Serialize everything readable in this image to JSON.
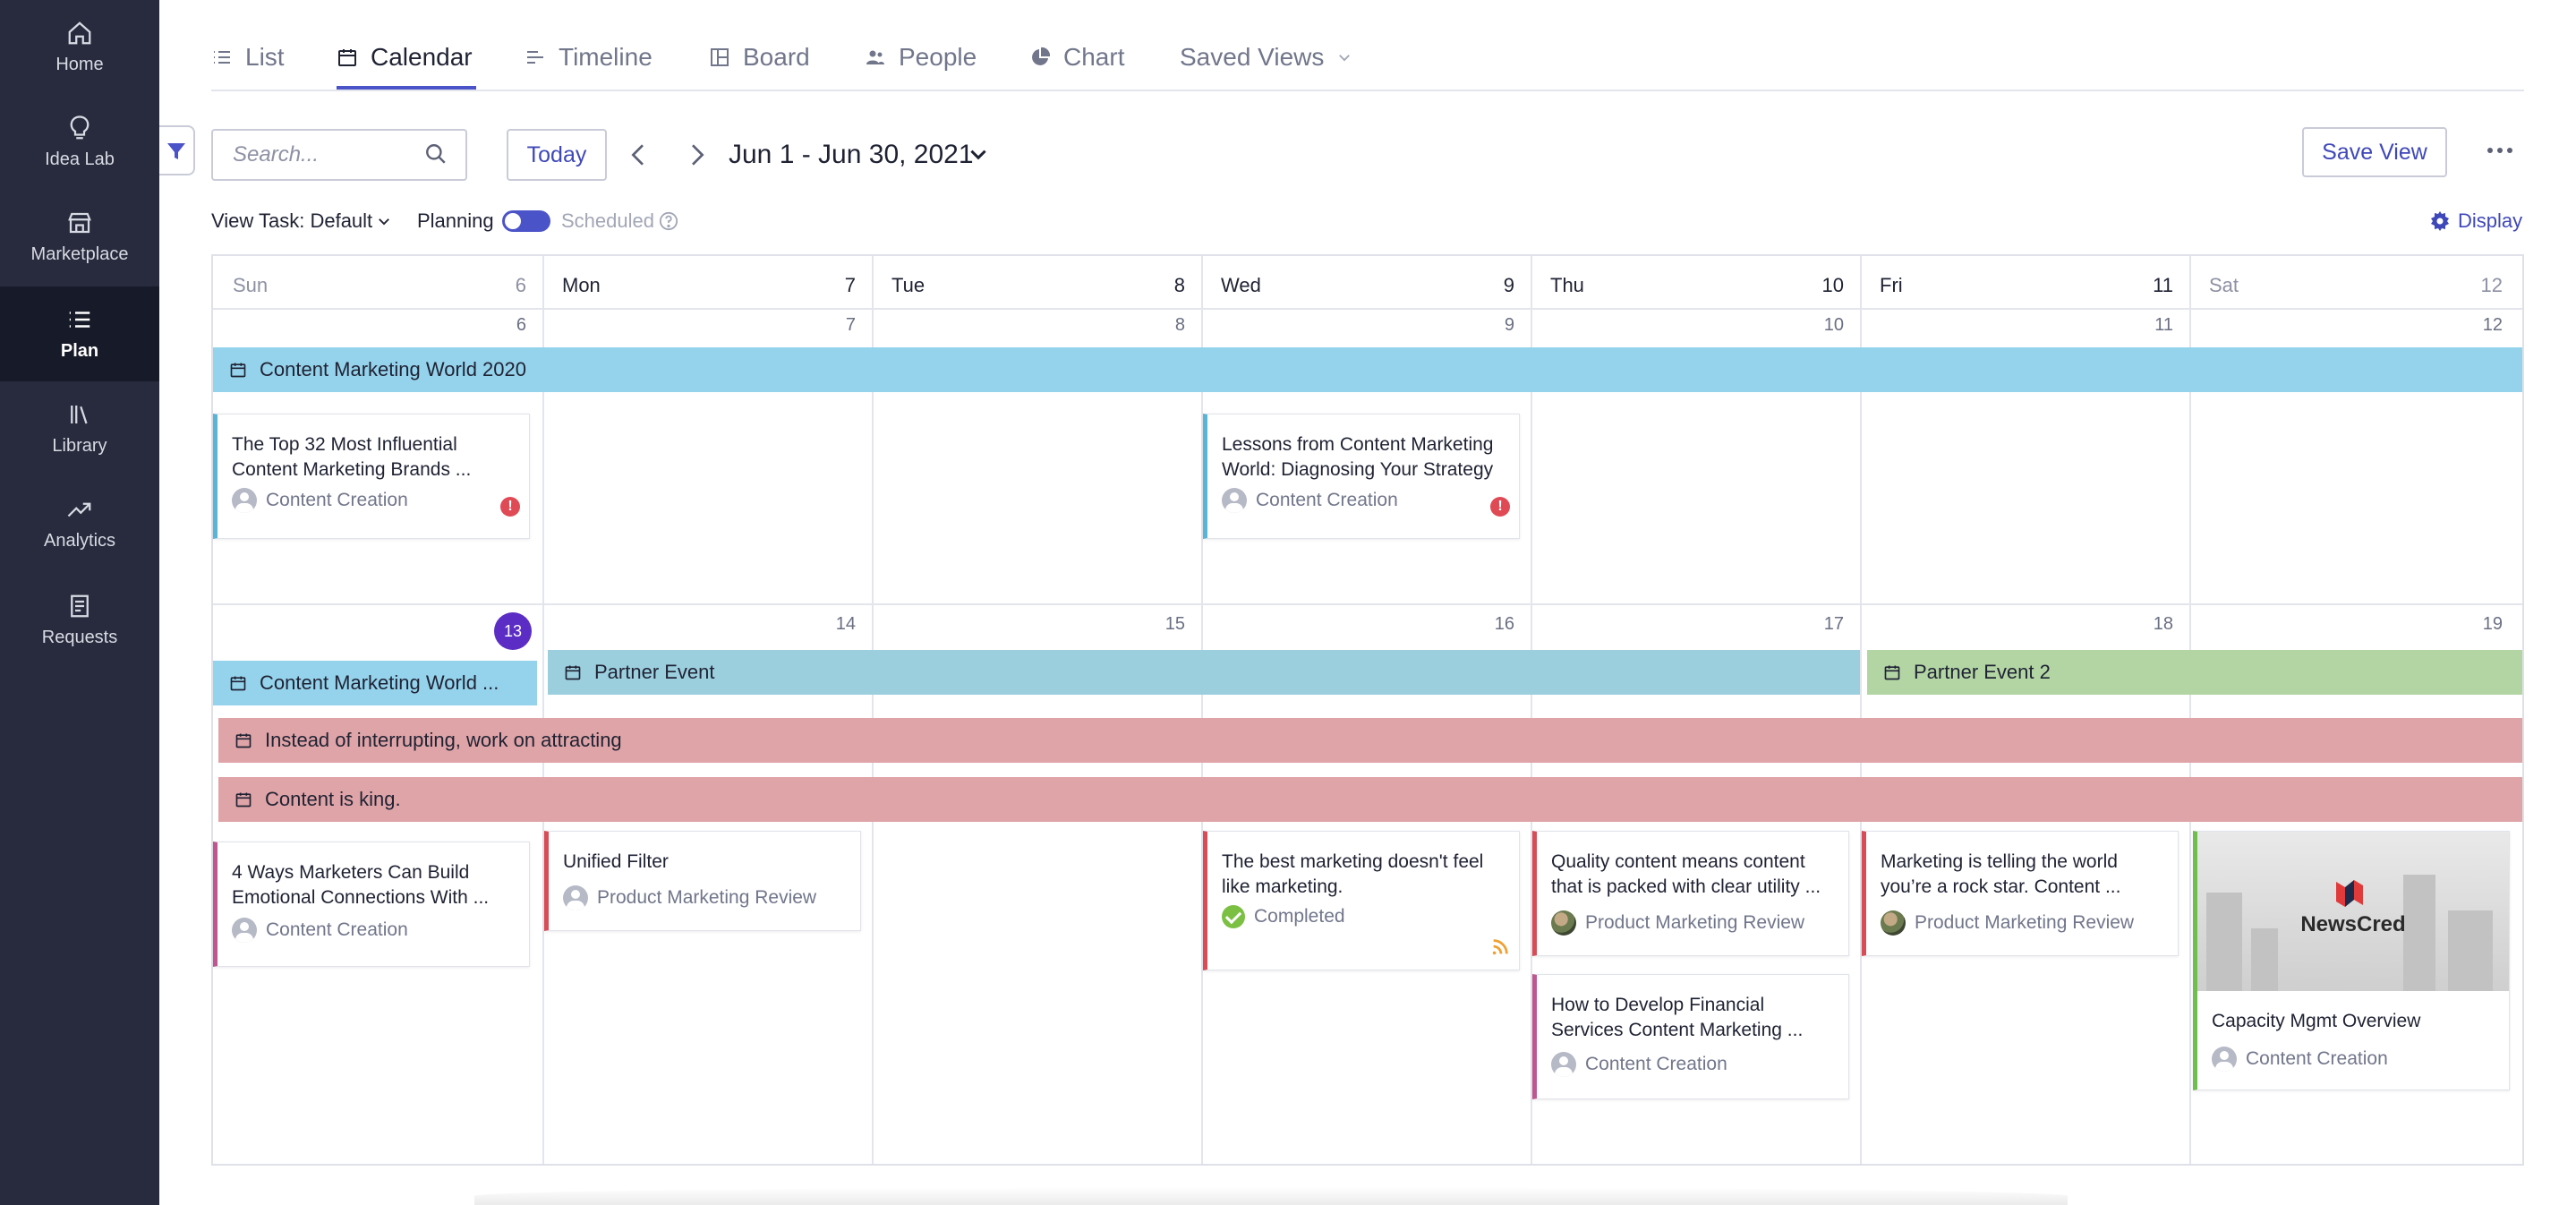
{
  "sidebar": {
    "items": [
      {
        "label": "Home",
        "icon": "home-icon"
      },
      {
        "label": "Idea Lab",
        "icon": "lightbulb-icon"
      },
      {
        "label": "Marketplace",
        "icon": "store-icon"
      },
      {
        "label": "Plan",
        "icon": "list-icon",
        "active": true
      },
      {
        "label": "Library",
        "icon": "library-icon"
      },
      {
        "label": "Analytics",
        "icon": "trend-icon"
      },
      {
        "label": "Requests",
        "icon": "document-icon"
      }
    ]
  },
  "tabs": [
    {
      "label": "List",
      "icon": "list-icon"
    },
    {
      "label": "Calendar",
      "icon": "calendar-icon",
      "active": true
    },
    {
      "label": "Timeline",
      "icon": "timeline-icon"
    },
    {
      "label": "Board",
      "icon": "board-icon"
    },
    {
      "label": "People",
      "icon": "people-icon"
    },
    {
      "label": "Chart",
      "icon": "pie-chart-icon"
    },
    {
      "label": "Saved Views",
      "icon": "chevron-down-icon"
    }
  ],
  "toolbar": {
    "search_placeholder": "Search...",
    "today_label": "Today",
    "date_range": "Jun 1 - Jun 30, 2021",
    "save_view_label": "Save View"
  },
  "options": {
    "view_task": "View Task: Default",
    "planning_label": "Planning",
    "planning_toggle": "on",
    "scheduled_label": "Scheduled",
    "display_label": "Display"
  },
  "calendar": {
    "header": [
      {
        "day": "Sun",
        "num": "6"
      },
      {
        "day": "Mon",
        "num": "7"
      },
      {
        "day": "Tue",
        "num": "8"
      },
      {
        "day": "Wed",
        "num": "9"
      },
      {
        "day": "Thu",
        "num": "10"
      },
      {
        "day": "Fri",
        "num": "11"
      },
      {
        "day": "Sat",
        "num": "12"
      }
    ],
    "week1_nums": [
      "6",
      "7",
      "8",
      "9",
      "10",
      "11",
      "12"
    ],
    "week2_nums": [
      "13",
      "14",
      "15",
      "16",
      "17",
      "18",
      "19"
    ],
    "events": {
      "cmw2020": "Content Marketing World 2020",
      "cmw_short": "Content Marketing World ...",
      "partner_event": "Partner Event",
      "partner_event_2": "Partner Event 2",
      "interrupting": "Instead of interrupting, work on attracting",
      "content_king": "Content is king."
    },
    "cards": {
      "top32": {
        "title": "The Top 32 Most Influential Content Marketing Brands ...",
        "sub": "Content Creation"
      },
      "lessons": {
        "title": "Lessons from Content Marketing World: Diagnosing Your Strategy",
        "sub": "Content Creation"
      },
      "four_ways": {
        "title": "4 Ways Marketers Can Build Emotional Connections With ...",
        "sub": "Content Creation"
      },
      "unified": {
        "title": "Unified Filter",
        "sub": "Product Marketing Review"
      },
      "best_marketing": {
        "title": "The best marketing doesn't feel like marketing.",
        "sub": "Completed"
      },
      "quality": {
        "title": "Quality content means content that is packed with clear utility ...",
        "sub": "Product Marketing Review"
      },
      "financial": {
        "title": "How to Develop Financial Services Content Marketing ...",
        "sub": "Content Creation"
      },
      "telling": {
        "title": "Marketing is telling the world you’re a rock star. Content ...",
        "sub": "Product Marketing Review"
      },
      "capacity": {
        "title": "Capacity Mgmt Overview",
        "sub": "Content Creation",
        "logo": "NewsCred"
      }
    }
  },
  "colors": {
    "sidebar": "#272b3d",
    "accent": "#4b53c8",
    "event_blue": "#95d3ec",
    "event_teal": "#9ccfde",
    "event_green": "#b3d5a4",
    "event_pink": "#dfa4a7",
    "today": "#5b2dc4"
  }
}
